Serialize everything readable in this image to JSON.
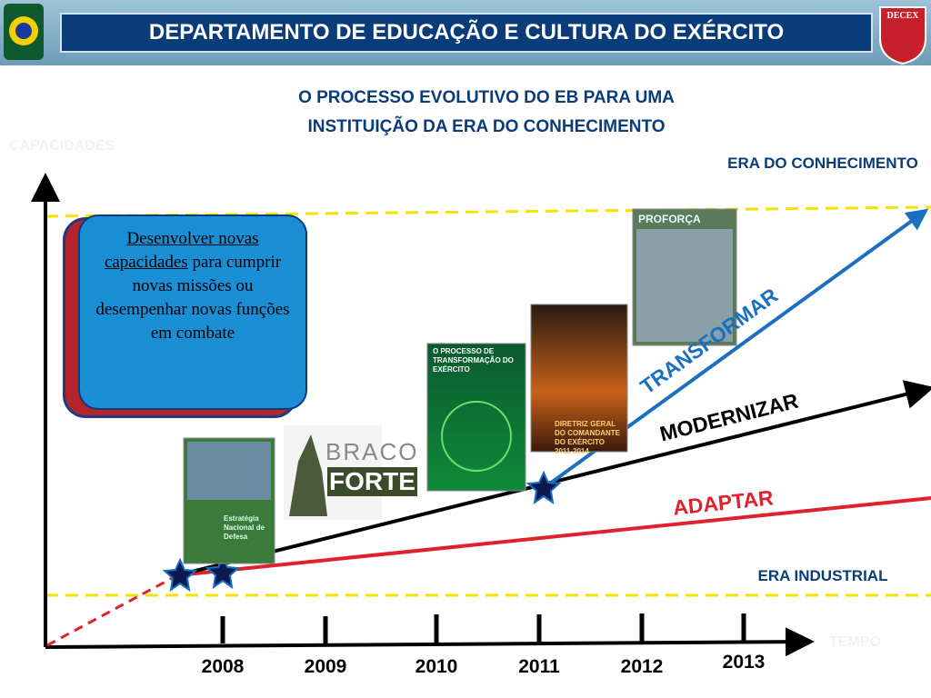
{
  "header": {
    "title": "DEPARTAMENTO DE EDUCAÇÃO E CULTURA DO EXÉRCITO",
    "logo": "DECEX"
  },
  "subtitle": [
    "O PROCESSO EVOLUTIVO DO EB PARA UMA",
    "INSTITUIÇÃO DA  ERA DO CONHECIMENTO"
  ],
  "axis": {
    "y_label": "CAPACIDADES",
    "x_label": "TEMPO"
  },
  "eras": {
    "top": "ERA DO CONHECIMENTO",
    "bottom": "ERA INDUSTRIAL"
  },
  "lines": {
    "transform": "TRANSFORMAR",
    "modernize": "MODERNIZAR",
    "adapt": "ADAPTAR"
  },
  "years": [
    "2008",
    "2009",
    "2010",
    "2011",
    "2012",
    "2013"
  ],
  "callout": {
    "emphasis": "Desenvolver novas capacidades",
    "text": "para cumprir novas missões ou desempenhar novas funções em combate"
  },
  "covers": {
    "braco": "BRACO",
    "forte": "FORTE",
    "end": "Estratégia Nacional de Defesa",
    "processo": "O PROCESSO DE TRANSFORMAÇÃO DO EXÉRCITO",
    "diretriz": "DIRETRIZ GERAL DO COMANDANTE DO EXÉRCITO 2011-2014",
    "proforca": "PROFORÇA"
  }
}
